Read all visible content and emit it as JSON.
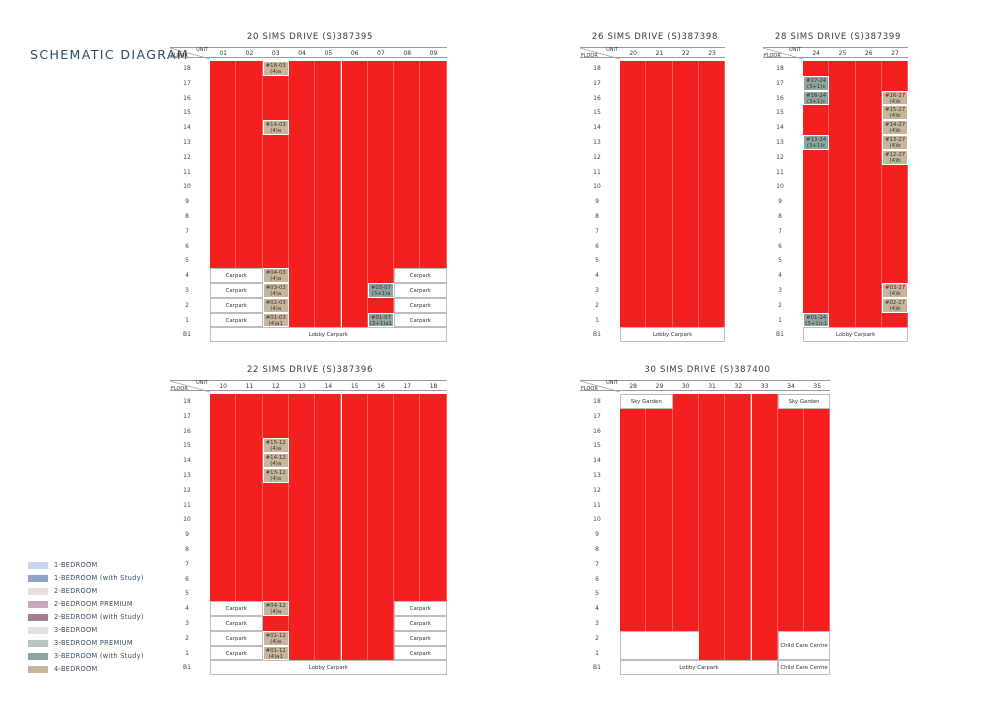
{
  "page_title": "SCHEMATIC DIAGRAM",
  "header_labels": {
    "unit": "UNIT",
    "floor": "FLOOR"
  },
  "floors": [
    "18",
    "17",
    "16",
    "15",
    "14",
    "13",
    "12",
    "11",
    "10",
    "9",
    "8",
    "7",
    "6",
    "5",
    "4",
    "3",
    "2",
    "1",
    "B1"
  ],
  "blocks": {
    "b20": {
      "title": "20 SIMS DRIVE (S)387395",
      "units": [
        "01",
        "02",
        "03",
        "04",
        "05",
        "06",
        "07",
        "08",
        "09"
      ],
      "boxes": {
        "carpark_l4": "Carpark",
        "carpark_l3": "Carpark",
        "carpark_l2": "Carpark",
        "carpark_l1": "Carpark",
        "carpark_r4": "Carpark",
        "carpark_r3": "Carpark",
        "carpark_r2": "Carpark",
        "carpark_r1": "Carpark",
        "lobby": "Lobby Carpark"
      },
      "highlights": {
        "u18_03": {
          "a": "#18-03",
          "b": "(4)a"
        },
        "u14_03": {
          "a": "#14-03",
          "b": "(4)a"
        },
        "u04_03": {
          "a": "#04-03",
          "b": "(4)a"
        },
        "u03_03": {
          "a": "#03-03",
          "b": "(4)a"
        },
        "u02_03": {
          "a": "#02-03",
          "b": "(4)a"
        },
        "u01_03": {
          "a": "#01-03",
          "b": "(4)a1"
        },
        "u03_07": {
          "a": "#03-07",
          "b": "(3+1)a"
        },
        "u01_07": {
          "a": "#01-07",
          "b": "(3+1)a1"
        }
      }
    },
    "b26": {
      "title": "26 SIMS DRIVE (S)387398",
      "units": [
        "20",
        "21",
        "22",
        "23"
      ],
      "boxes": {
        "lobby": "Lobby Carpark"
      }
    },
    "b28": {
      "title": "28 SIMS DRIVE (S)387399",
      "units": [
        "24",
        "25",
        "26",
        "27"
      ],
      "boxes": {
        "lobby": "Lobby Carpark"
      },
      "highlights": {
        "u17_24": {
          "a": "#17-24",
          "b": "(3+1)c"
        },
        "u16_24": {
          "a": "#16-24",
          "b": "(3+1)c"
        },
        "u13_24": {
          "a": "#13-24",
          "b": "(3+1)c"
        },
        "u01_24": {
          "a": "#01-24",
          "b": "(3+1)c1"
        },
        "u16_27": {
          "a": "#16-27",
          "b": "(4)b"
        },
        "u15_27": {
          "a": "#15-27",
          "b": "(4)b"
        },
        "u14_27": {
          "a": "#14-27",
          "b": "(4)b"
        },
        "u13_27": {
          "a": "#13-27",
          "b": "(4)b"
        },
        "u12_27": {
          "a": "#12-27",
          "b": "(4)b"
        },
        "u03_27": {
          "a": "#03-27",
          "b": "(4)b"
        },
        "u02_27": {
          "a": "#02-27",
          "b": "(4)b"
        }
      }
    },
    "b22": {
      "title": "22 SIMS DRIVE (S)387396",
      "units": [
        "10",
        "11",
        "12",
        "13",
        "14",
        "15",
        "16",
        "17",
        "18"
      ],
      "boxes": {
        "carpark_l4": "Carpark",
        "carpark_l3": "Carpark",
        "carpark_l2": "Carpark",
        "carpark_l1": "Carpark",
        "carpark_r4": "Carpark",
        "carpark_r3": "Carpark",
        "carpark_r2": "Carpark",
        "carpark_r1": "Carpark",
        "lobby": "Lobby Carpark"
      },
      "highlights": {
        "u15_12": {
          "a": "#15-12",
          "b": "(4)a"
        },
        "u14_12": {
          "a": "#14-12",
          "b": "(4)a"
        },
        "u13_12": {
          "a": "#13-12",
          "b": "(4)a"
        },
        "u04_12": {
          "a": "#04-12",
          "b": "(4)a"
        },
        "u02_12": {
          "a": "#02-12",
          "b": "(4)a"
        },
        "u01_12": {
          "a": "#01-12",
          "b": "(4)a1"
        }
      }
    },
    "b30": {
      "title": "30 SIMS DRIVE (S)387400",
      "units": [
        "28",
        "29",
        "30",
        "31",
        "32",
        "33",
        "34",
        "35"
      ],
      "boxes": {
        "sky_garden_left": "Sky Garden",
        "sky_garden_right": "Sky Garden",
        "lobby": "Lobby Carpark",
        "child_care": "Child Care Centre",
        "child_care_b1": "Child Care Centre"
      }
    }
  },
  "legend": [
    {
      "label": "1-BEDROOM",
      "color": "#c9d6ea"
    },
    {
      "label": "1-BEDROOM (with Study)",
      "color": "#8fa6c9"
    },
    {
      "label": "2-BEDROOM",
      "color": "#eadde2"
    },
    {
      "label": "2-BEDROOM PREMIUM",
      "color": "#c9a9b8"
    },
    {
      "label": "2-BEDROOM (with Study)",
      "color": "#a37f92"
    },
    {
      "label": "3-BEDROOM",
      "color": "#dfe2e2"
    },
    {
      "label": "3-BEDROOM PREMIUM",
      "color": "#b9c4c0"
    },
    {
      "label": "3-BEDROOM (with Study)",
      "color": "#8fa6a0"
    },
    {
      "label": "4-BEDROOM",
      "color": "#c7b69b"
    }
  ],
  "colors": {
    "sold": "#f41f1f",
    "four_bedroom": "#c7b69b",
    "three_bedroom_study": "#8fa6a0",
    "title": "#2c4a66"
  }
}
